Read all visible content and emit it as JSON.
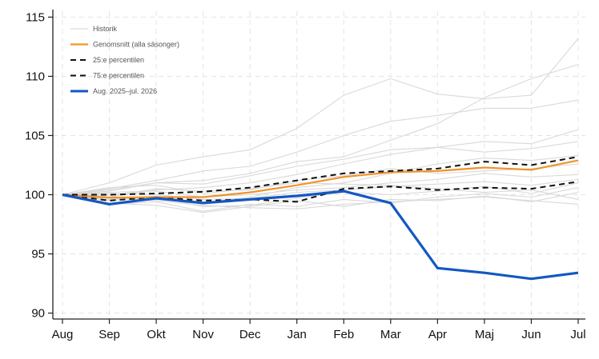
{
  "chart_data": {
    "type": "line",
    "categories": [
      "Aug",
      "Sep",
      "Okt",
      "Nov",
      "Dec",
      "Jan",
      "Feb",
      "Mar",
      "Apr",
      "Maj",
      "Jun",
      "Jul"
    ],
    "ylim": [
      89.5,
      115.5
    ],
    "yticks": [
      90,
      95,
      100,
      105,
      110,
      115
    ],
    "grid": true,
    "legend_position": "top-left",
    "colors": {
      "historical": "#d9d9d9",
      "mean": "#f0932b",
      "percentile": "#111111",
      "current": "#1357c2",
      "axis": "#222222",
      "grid": "#e4e4e4"
    },
    "historical": [
      [
        100,
        101.0,
        102.5,
        103.2,
        103.8,
        105.6,
        108.4,
        109.8,
        108.5,
        108.1,
        108.4,
        113.2
      ],
      [
        100,
        100.3,
        101.0,
        101.2,
        101.8,
        102.8,
        103.2,
        104.6,
        106.0,
        108.2,
        109.8,
        111.0
      ],
      [
        100,
        100.5,
        101.2,
        102.0,
        102.4,
        103.6,
        105.0,
        106.2,
        106.7,
        107.3,
        107.3,
        108.0
      ],
      [
        100,
        99.8,
        100.4,
        100.6,
        101.0,
        101.7,
        102.6,
        103.4,
        104.0,
        104.5,
        104.3,
        105.5
      ],
      [
        100,
        100.4,
        101.0,
        100.9,
        101.6,
        102.4,
        103.0,
        103.8,
        104.0,
        103.6,
        103.9,
        104.5
      ],
      [
        100,
        99.6,
        99.9,
        99.3,
        99.8,
        100.6,
        101.0,
        101.8,
        102.6,
        103.1,
        102.9,
        103.3
      ],
      [
        100,
        99.2,
        99.4,
        98.6,
        99.2,
        99.0,
        99.6,
        99.3,
        99.8,
        100.1,
        99.8,
        100.6
      ],
      [
        100,
        99.9,
        100.5,
        100.3,
        100.4,
        101.2,
        101.6,
        102.2,
        101.8,
        102.0,
        102.2,
        102.6
      ],
      [
        100,
        99.5,
        99.8,
        99.0,
        99.1,
        99.7,
        100.2,
        100.0,
        100.3,
        100.7,
        100.1,
        101.0
      ],
      [
        100,
        100.2,
        100.3,
        99.8,
        100.0,
        100.4,
        100.6,
        101.0,
        101.3,
        101.8,
        101.5,
        101.7
      ],
      [
        100,
        99.3,
        99.1,
        98.5,
        99.0,
        99.5,
        99.0,
        99.6,
        99.5,
        99.9,
        99.4,
        100.2
      ],
      [
        100,
        100.6,
        100.8,
        100.1,
        100.5,
        101.0,
        100.9,
        100.8,
        100.5,
        100.2,
        100.4,
        99.6
      ],
      [
        100,
        99.7,
        99.5,
        99.1,
        98.9,
        98.8,
        99.2,
        99.4,
        99.6,
        99.8,
        99.5,
        99.2
      ],
      [
        100,
        100.1,
        100.0,
        99.6,
        99.7,
        100.2,
        100.4,
        100.7,
        100.9,
        101.1,
        100.8,
        101.3
      ]
    ],
    "series": [
      {
        "name": "Genomsnitt (alla säsonger)",
        "role": "mean",
        "values": [
          100,
          99.75,
          99.8,
          99.8,
          100.2,
          100.8,
          101.5,
          101.9,
          102.0,
          102.3,
          102.1,
          102.9
        ]
      },
      {
        "name": "25:e percentilen",
        "role": "p25",
        "values": [
          100,
          99.5,
          99.8,
          99.5,
          99.6,
          99.4,
          100.5,
          100.7,
          100.4,
          100.6,
          100.5,
          101.1
        ]
      },
      {
        "name": "75:e percentilen",
        "role": "p75",
        "values": [
          100,
          100.0,
          100.1,
          100.25,
          100.6,
          101.2,
          101.8,
          102.0,
          102.2,
          102.8,
          102.5,
          103.2
        ]
      },
      {
        "name": "Aug. 2025–jul. 2026",
        "role": "current",
        "values": [
          100,
          99.2,
          99.7,
          99.3,
          99.6,
          99.9,
          100.3,
          99.3,
          93.8,
          93.4,
          92.9,
          93.4
        ]
      }
    ],
    "legend": [
      {
        "label": "Historik",
        "style": "historical"
      },
      {
        "label": "Genomsnitt (alla säsonger)",
        "style": "mean"
      },
      {
        "label": "25:e percentilen",
        "style": "percentile"
      },
      {
        "label": "75:e percentilen",
        "style": "percentile"
      },
      {
        "label": "Aug. 2025–jul. 2026",
        "style": "current"
      }
    ]
  }
}
